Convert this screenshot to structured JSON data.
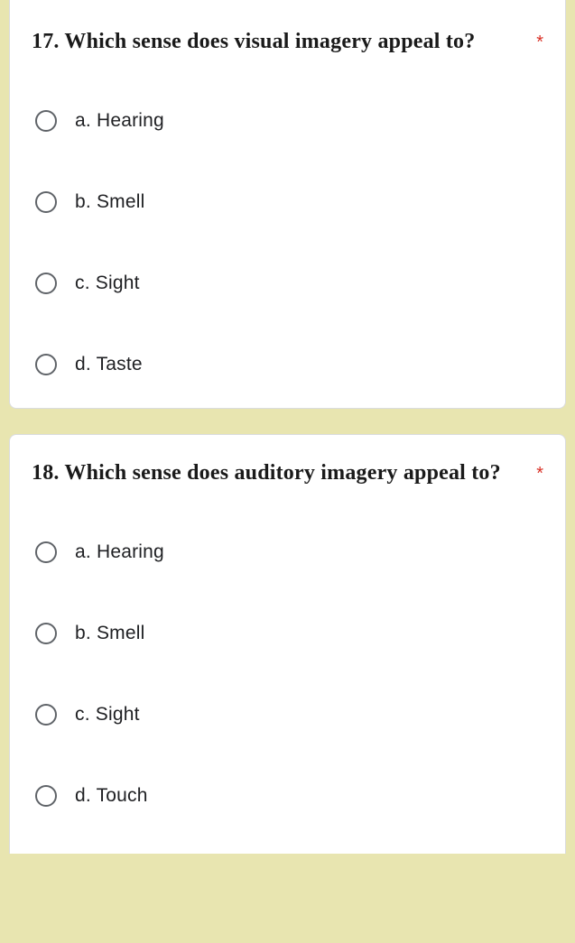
{
  "background_color": "#e8e5b0",
  "card_background": "#ffffff",
  "card_border_color": "#dadce0",
  "required_color": "#d93025",
  "radio_border_color": "#5f6368",
  "text_color": "#202124",
  "title_font": "Georgia, serif",
  "body_font": "Arial, sans-serif",
  "q17": {
    "title": "17. Which sense does visual imagery appeal to?",
    "required": "*",
    "options": {
      "a": "a. Hearing",
      "b": "b. Smell",
      "c": "c. Sight",
      "d": "d. Taste"
    }
  },
  "q18": {
    "title": "18. Which sense does auditory imagery appeal to?",
    "required": "*",
    "options": {
      "a": "a. Hearing",
      "b": "b. Smell",
      "c": "c. Sight",
      "d": "d. Touch"
    }
  }
}
